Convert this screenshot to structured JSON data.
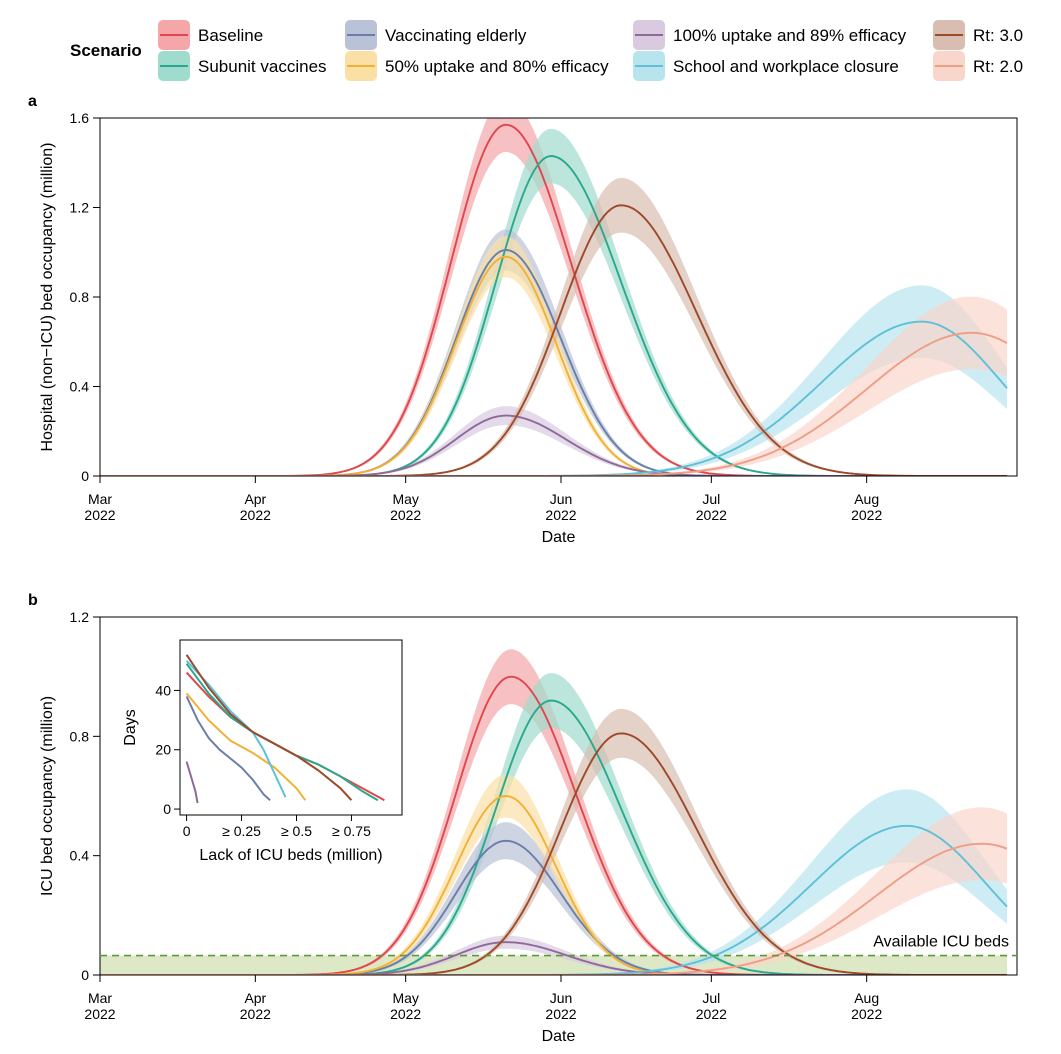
{
  "legend": {
    "title": "Scenario",
    "items": [
      {
        "key": "baseline",
        "label": "Baseline",
        "line": "#e0474c",
        "band": "#f4a6a9"
      },
      {
        "key": "subunit",
        "label": "Subunit vaccines",
        "line": "#2aa88e",
        "band": "#9fdccd"
      },
      {
        "key": "elderly",
        "label": "Vaccinating elderly",
        "line": "#6a7fa8",
        "band": "#b9c2d6"
      },
      {
        "key": "u50",
        "label": "50% uptake and 80% efficacy",
        "line": "#f2b134",
        "band": "#fbe0a6"
      },
      {
        "key": "u100",
        "label": "100% uptake and 89% efficacy",
        "line": "#8e6a9a",
        "band": "#d9cadf"
      },
      {
        "key": "closure",
        "label": "School and workplace closure",
        "line": "#5fc0d8",
        "band": "#b8e4ee"
      },
      {
        "key": "rt3",
        "label": "Rt: 3.0",
        "line": "#9c4a2a",
        "band": "#d9bdb0"
      },
      {
        "key": "rt2",
        "label": "Rt: 2.0",
        "line": "#ef9e86",
        "band": "#f9d6cb"
      }
    ]
  },
  "chart_data": [
    {
      "panel_label": "a",
      "type": "line",
      "xlabel": "Date",
      "ylabel": "Hospital (non−ICU) bed occupancy (million)",
      "xlim": [
        "2022-03-01",
        "2022-08-31"
      ],
      "ylim": [
        0,
        1.6
      ],
      "x_ticks": [
        "2022-03-01",
        "2022-04-01",
        "2022-05-01",
        "2022-06-01",
        "2022-07-01",
        "2022-08-01"
      ],
      "x_tick_labels": [
        [
          "Mar",
          "2022"
        ],
        [
          "Apr",
          "2022"
        ],
        [
          "May",
          "2022"
        ],
        [
          "Jun",
          "2022"
        ],
        [
          "Jul",
          "2022"
        ],
        [
          "Aug",
          "2022"
        ]
      ],
      "y_ticks": [
        0,
        0.4,
        0.8,
        1.2,
        1.6
      ],
      "y_tick_labels": [
        "0",
        "0.4",
        "0.8",
        "1.2",
        "1.6"
      ],
      "series": [
        {
          "key": "baseline",
          "peak_date": "2022-05-21",
          "peak": 1.57,
          "rise_days": 11,
          "fall_days": 13,
          "band": 0.12
        },
        {
          "key": "subunit",
          "peak_date": "2022-05-30",
          "peak": 1.43,
          "rise_days": 11,
          "fall_days": 14,
          "band": 0.12
        },
        {
          "key": "elderly",
          "peak_date": "2022-05-21",
          "peak": 1.01,
          "rise_days": 10,
          "fall_days": 11,
          "band": 0.09
        },
        {
          "key": "u50",
          "peak_date": "2022-05-21",
          "peak": 0.98,
          "rise_days": 10,
          "fall_days": 10,
          "band": 0.09
        },
        {
          "key": "u100",
          "peak_date": "2022-05-21",
          "peak": 0.27,
          "rise_days": 10,
          "fall_days": 12,
          "band": 0.04
        },
        {
          "key": "closure",
          "peak_date": "2022-08-12",
          "peak": 0.69,
          "rise_days": 20,
          "fall_days": 16,
          "band": 0.16
        },
        {
          "key": "rt3",
          "peak_date": "2022-06-13",
          "peak": 1.21,
          "rise_days": 12,
          "fall_days": 15,
          "band": 0.12
        },
        {
          "key": "rt2",
          "peak_date": "2022-08-22",
          "peak": 0.64,
          "rise_days": 21,
          "fall_days": 18,
          "band": 0.16
        }
      ]
    },
    {
      "panel_label": "b",
      "type": "line",
      "xlabel": "Date",
      "ylabel": "ICU bed occupancy (million)",
      "xlim": [
        "2022-03-01",
        "2022-08-31"
      ],
      "ylim": [
        0,
        1.2
      ],
      "x_ticks": [
        "2022-03-01",
        "2022-04-01",
        "2022-05-01",
        "2022-06-01",
        "2022-07-01",
        "2022-08-01"
      ],
      "x_tick_labels": [
        [
          "Mar",
          "2022"
        ],
        [
          "Apr",
          "2022"
        ],
        [
          "May",
          "2022"
        ],
        [
          "Jun",
          "2022"
        ],
        [
          "Jul",
          "2022"
        ],
        [
          "Aug",
          "2022"
        ]
      ],
      "y_ticks": [
        0,
        0.4,
        0.8,
        1.2
      ],
      "y_tick_labels": [
        "0",
        "0.4",
        "0.8",
        "1.2"
      ],
      "available_icu_beds": 0.065,
      "available_label": "Available ICU beds",
      "series": [
        {
          "key": "baseline",
          "peak_date": "2022-05-22",
          "peak": 1.0,
          "rise_days": 11,
          "fall_days": 13,
          "band": 0.09
        },
        {
          "key": "subunit",
          "peak_date": "2022-05-30",
          "peak": 0.92,
          "rise_days": 11,
          "fall_days": 14,
          "band": 0.09
        },
        {
          "key": "elderly",
          "peak_date": "2022-05-21",
          "peak": 0.45,
          "rise_days": 10,
          "fall_days": 11,
          "band": 0.06
        },
        {
          "key": "u50",
          "peak_date": "2022-05-21",
          "peak": 0.6,
          "rise_days": 10,
          "fall_days": 10,
          "band": 0.07
        },
        {
          "key": "u100",
          "peak_date": "2022-05-21",
          "peak": 0.11,
          "rise_days": 10,
          "fall_days": 12,
          "band": 0.02
        },
        {
          "key": "closure",
          "peak_date": "2022-08-09",
          "peak": 0.5,
          "rise_days": 19,
          "fall_days": 16,
          "band": 0.12
        },
        {
          "key": "rt3",
          "peak_date": "2022-06-13",
          "peak": 0.81,
          "rise_days": 12,
          "fall_days": 15,
          "band": 0.08
        },
        {
          "key": "rt2",
          "peak_date": "2022-08-24",
          "peak": 0.44,
          "rise_days": 21,
          "fall_days": 18,
          "band": 0.12
        }
      ],
      "inset": {
        "type": "line",
        "xlabel": "Lack of ICU beds (million)",
        "ylabel": "Days",
        "xlim": [
          -0.03,
          0.98
        ],
        "ylim": [
          -2,
          57
        ],
        "x_ticks": [
          0,
          0.25,
          0.5,
          0.75
        ],
        "x_tick_labels": [
          "0",
          "≥ 0.25",
          "≥ 0.5",
          "≥ 0.75"
        ],
        "y_ticks": [
          0,
          20,
          40
        ],
        "y_tick_labels": [
          "0",
          "20",
          "40"
        ],
        "series": [
          {
            "key": "baseline",
            "x": [
              0,
              0.1,
              0.2,
              0.3,
              0.4,
              0.5,
              0.6,
              0.7,
              0.8,
              0.9
            ],
            "y": [
              46,
              38,
              31,
              26,
              22,
              18,
              15,
              11,
              7,
              3
            ]
          },
          {
            "key": "subunit",
            "x": [
              0,
              0.1,
              0.2,
              0.3,
              0.4,
              0.5,
              0.6,
              0.7,
              0.8,
              0.87
            ],
            "y": [
              49,
              39,
              31,
              26,
              22,
              18,
              15,
              11,
              6,
              3
            ]
          },
          {
            "key": "elderly",
            "x": [
              0,
              0.05,
              0.1,
              0.15,
              0.2,
              0.25,
              0.3,
              0.35,
              0.38
            ],
            "y": [
              38,
              30,
              24,
              20,
              17,
              14,
              10,
              5,
              3
            ]
          },
          {
            "key": "u50",
            "x": [
              0,
              0.1,
              0.2,
              0.3,
              0.4,
              0.5,
              0.54
            ],
            "y": [
              39,
              30,
              23,
              19,
              14,
              7,
              3
            ]
          },
          {
            "key": "u100",
            "x": [
              0,
              0.02,
              0.04,
              0.05
            ],
            "y": [
              16,
              11,
              6,
              2
            ]
          },
          {
            "key": "closure",
            "x": [
              0,
              0.1,
              0.2,
              0.3,
              0.35,
              0.4,
              0.45
            ],
            "y": [
              50,
              42,
              33,
              26,
              20,
              12,
              4
            ]
          },
          {
            "key": "rt3",
            "x": [
              0,
              0.1,
              0.2,
              0.3,
              0.4,
              0.5,
              0.6,
              0.7,
              0.75
            ],
            "y": [
              52,
              41,
              32,
              26,
              22,
              18,
              13,
              7,
              3
            ]
          }
        ]
      }
    }
  ]
}
